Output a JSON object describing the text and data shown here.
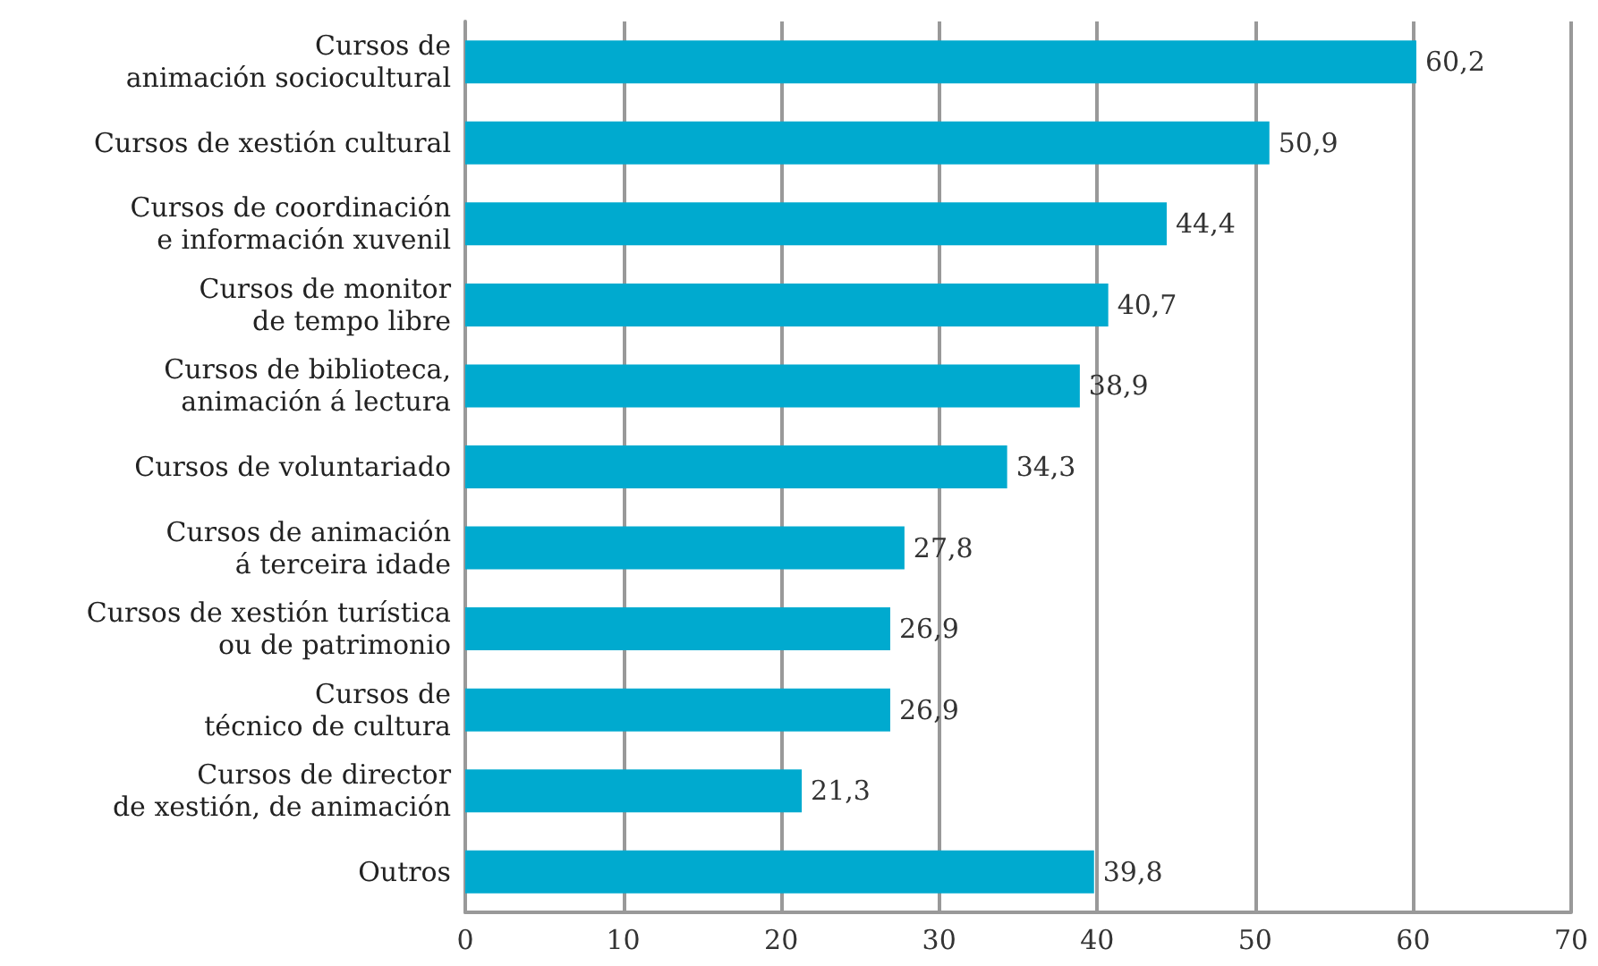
{
  "chart_data": {
    "type": "bar",
    "orientation": "horizontal",
    "categories": [
      "Cursos de\nanimación sociocultural",
      "Cursos de xestión cultural",
      "Cursos de coordinación\ne información xuvenil",
      "Cursos de monitor\nde tempo libre",
      "Cursos de biblioteca,\nanimación á lectura",
      "Cursos de voluntariado",
      "Cursos de animación\ná terceira idade",
      "Cursos de xestión turística\nou de patrimonio",
      "Cursos de\ntécnico de cultura",
      "Cursos de director\nde xestión, de animación",
      "Outros"
    ],
    "values": [
      60.2,
      50.9,
      44.4,
      40.7,
      38.9,
      34.3,
      27.8,
      26.9,
      26.9,
      21.3,
      39.8
    ],
    "value_labels": [
      "60,2",
      "50,9",
      "44,4",
      "40,7",
      "38,9",
      "34,3",
      "27,8",
      "26,9",
      "26,9",
      "21,3",
      "39,8"
    ],
    "color": "#00aacf",
    "xlim": [
      0,
      70
    ],
    "xticks": [
      0,
      10,
      20,
      30,
      40,
      50,
      60,
      70
    ],
    "grid": "x"
  }
}
